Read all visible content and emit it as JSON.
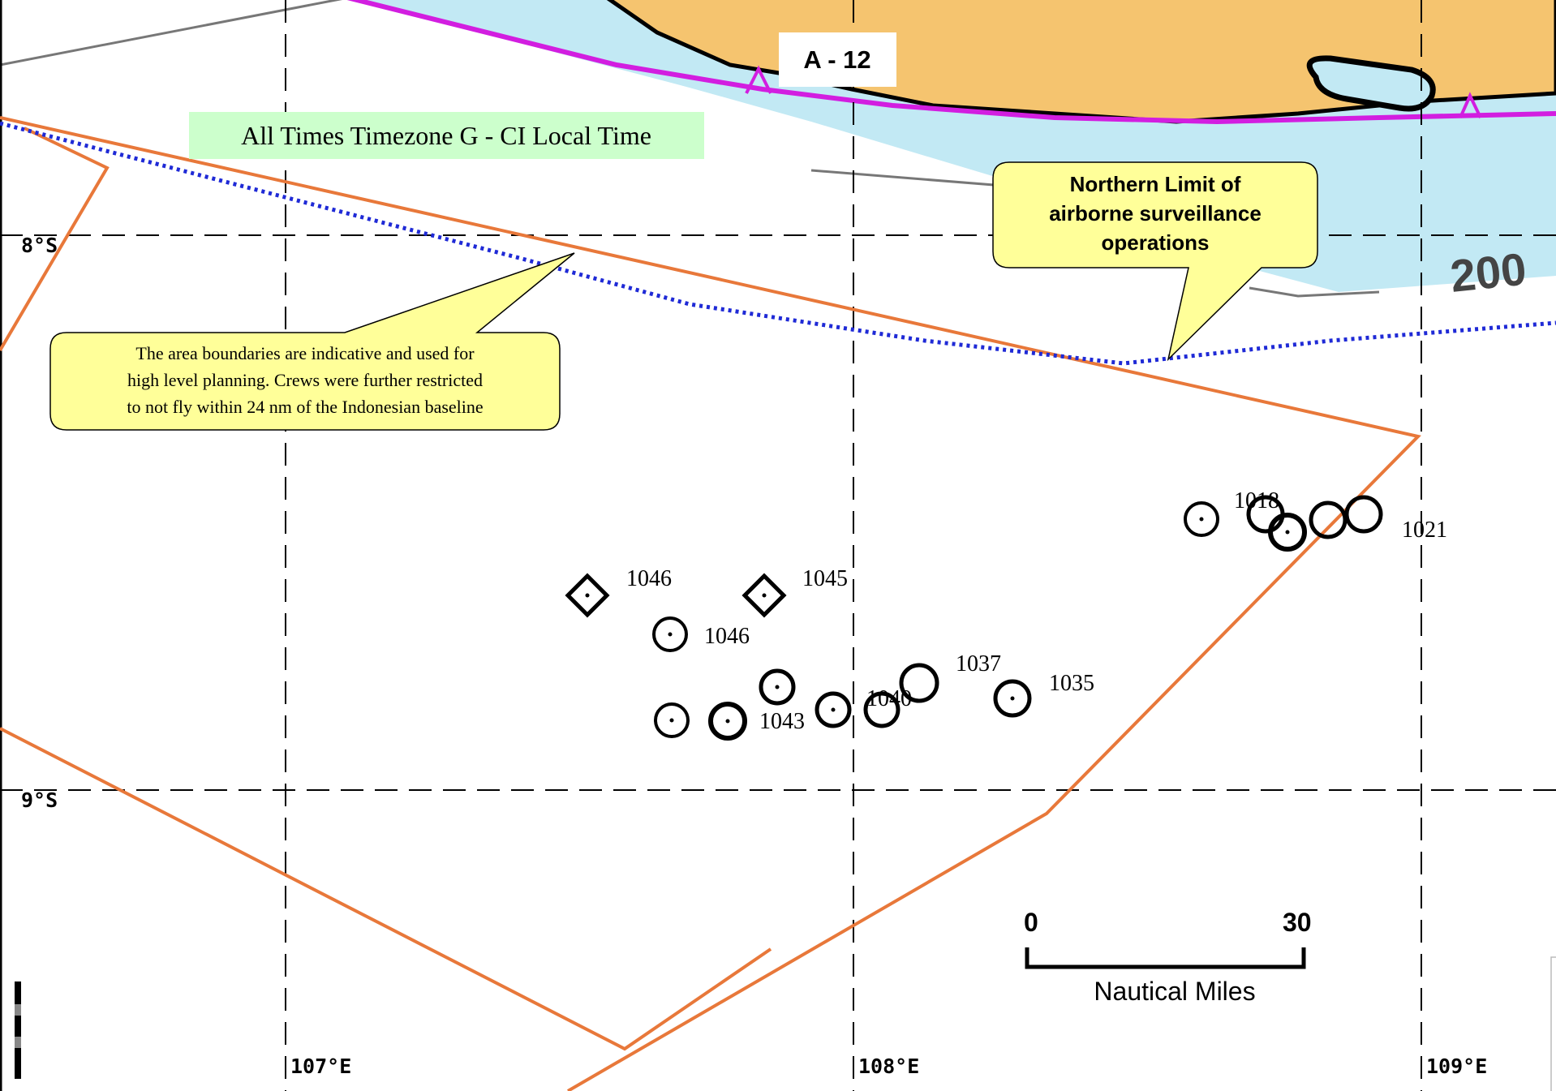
{
  "map": {
    "area_label": "A - 12",
    "timezone_note": "All Times Timezone G - CI Local Time",
    "depth_label": "200",
    "latitudes": [
      "8°S",
      "9°S"
    ],
    "longitudes": [
      "107°E",
      "108°E",
      "109°E"
    ],
    "callouts": {
      "northern_limit": [
        "Northern Limit of",
        "airborne surveillance",
        "operations"
      ],
      "boundary_note": [
        "The area boundaries are indicative and used for",
        "high level planning.  Crews were further restricted",
        "to not  fly within 24 nm of the Indonesian baseline"
      ]
    },
    "scale_bar": {
      "start": "0",
      "end": "30",
      "unit": "Nautical Miles"
    },
    "contact_labels": [
      "1046",
      "1045",
      "1046",
      "1043",
      "1040",
      "1037",
      "1035",
      "1018",
      "1021"
    ],
    "colors": {
      "land": "#f5c46f",
      "shallow_water": "#c2e9f4",
      "area_boundary": "#e8783a",
      "surveillance_limit": "#1f2ad6",
      "baseline": "#d21ee0",
      "callout_fill": "#ffff99",
      "note_fill": "#ccffcc"
    }
  }
}
